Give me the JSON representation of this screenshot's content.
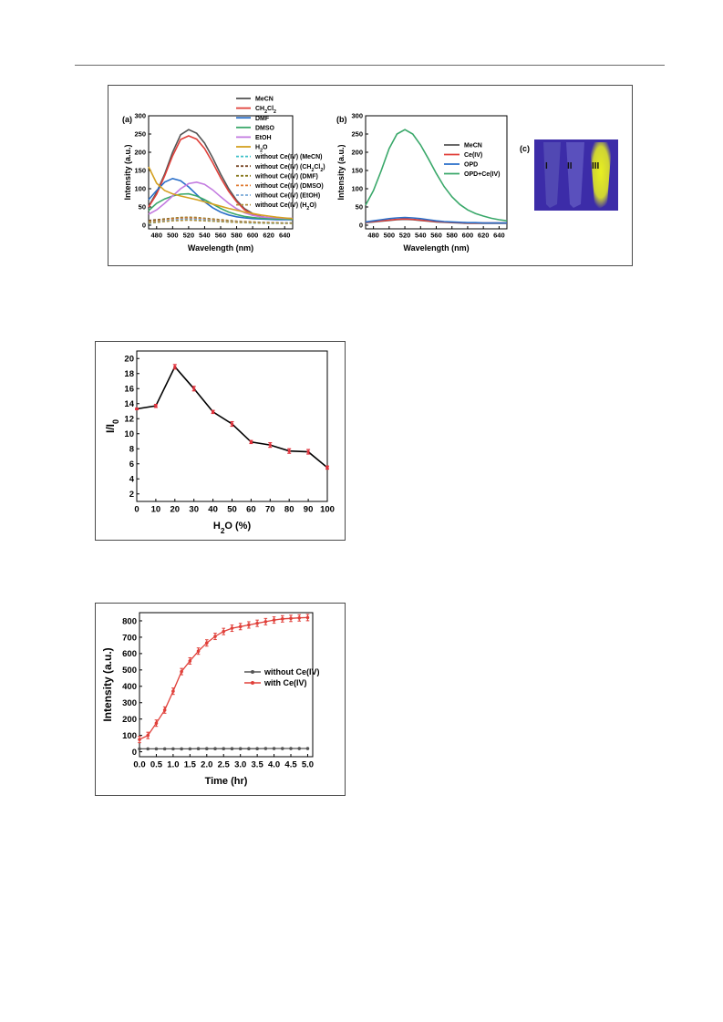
{
  "chart_data": [
    {
      "type": "line",
      "panel_label": "(a)",
      "xlabel": "Wavelength (nm)",
      "ylabel": "Intensity (a.u.)",
      "xlim": [
        470,
        650
      ],
      "ylim": [
        -10,
        300
      ],
      "xticks": [
        480,
        500,
        520,
        540,
        560,
        580,
        600,
        620,
        640
      ],
      "yticks": [
        0,
        50,
        100,
        150,
        200,
        250,
        300
      ],
      "legend_position": "top-center",
      "x": [
        470,
        480,
        490,
        500,
        510,
        520,
        530,
        540,
        550,
        560,
        570,
        580,
        590,
        600,
        610,
        620,
        630,
        640,
        650
      ],
      "series": [
        {
          "name": "MeCN",
          "color": "#555555",
          "style": "solid",
          "values": [
            52,
            90,
            140,
            200,
            248,
            262,
            252,
            225,
            185,
            140,
            100,
            68,
            45,
            32,
            24,
            20,
            18,
            17,
            16
          ]
        },
        {
          "name": "CH2Cl2",
          "name_main": "CH",
          "name_sub1": "2",
          "name_mid": "Cl",
          "name_sub2": "2",
          "color": "#e0403a",
          "style": "solid",
          "values": [
            50,
            85,
            135,
            190,
            235,
            245,
            236,
            210,
            172,
            130,
            93,
            64,
            42,
            30,
            23,
            19,
            17,
            16,
            15
          ]
        },
        {
          "name": "DMF",
          "color": "#2a6fc9",
          "style": "solid",
          "values": [
            70,
            95,
            118,
            128,
            122,
            105,
            84,
            64,
            48,
            36,
            28,
            23,
            20,
            18,
            17,
            16,
            15,
            15,
            15
          ]
        },
        {
          "name": "DMSO",
          "color": "#3aa86a",
          "style": "solid",
          "values": [
            40,
            60,
            72,
            80,
            85,
            86,
            80,
            70,
            58,
            46,
            36,
            29,
            24,
            21,
            19,
            18,
            17,
            17,
            16
          ]
        },
        {
          "name": "EtOH",
          "color": "#c37be0",
          "style": "solid",
          "values": [
            30,
            42,
            60,
            80,
            100,
            114,
            118,
            112,
            97,
            78,
            60,
            45,
            34,
            27,
            23,
            21,
            20,
            19,
            19
          ]
        },
        {
          "name": "H2O",
          "name_main": "H",
          "name_sub1": "2",
          "name_mid": "O",
          "name_sub2": "",
          "color": "#d4a020",
          "style": "solid",
          "values": [
            160,
            115,
            95,
            86,
            80,
            75,
            70,
            64,
            58,
            52,
            46,
            41,
            36,
            32,
            28,
            25,
            22,
            20,
            18
          ]
        },
        {
          "name": "without Ce(IV) (MeCN)",
          "color": "#3cc0c8",
          "style": "dashed",
          "values": [
            5,
            8,
            11,
            14,
            15,
            15,
            14,
            13,
            11,
            10,
            9,
            8,
            7,
            6,
            6,
            5,
            5,
            5,
            5
          ]
        },
        {
          "name": "without Ce(IV) (CH2Cl2)",
          "name_main": "without Ce(IV) (CH",
          "name_sub1": "2",
          "name_mid": "Cl",
          "name_sub2": "2",
          "name_tail": ")",
          "color": "#7a4a2a",
          "style": "dashed",
          "values": [
            13,
            15,
            17,
            19,
            20,
            20,
            19,
            17,
            15,
            13,
            11,
            10,
            9,
            8,
            7,
            7,
            6,
            6,
            6
          ]
        },
        {
          "name": "without Ce(IV) (DMF)",
          "color": "#8a7a20",
          "style": "dashed",
          "values": [
            10,
            13,
            16,
            19,
            21,
            22,
            21,
            19,
            17,
            15,
            13,
            11,
            10,
            9,
            8,
            7,
            7,
            6,
            6
          ]
        },
        {
          "name": "without Ce(IV) (DMSO)",
          "color": "#e07a30",
          "style": "dashed",
          "values": [
            8,
            11,
            14,
            17,
            19,
            20,
            19,
            17,
            15,
            13,
            11,
            10,
            9,
            8,
            7,
            7,
            6,
            6,
            6
          ]
        },
        {
          "name": "without Ce(IV) (EtOH)",
          "color": "#7aaad8",
          "style": "dashed",
          "values": [
            7,
            9,
            12,
            14,
            16,
            17,
            16,
            15,
            13,
            11,
            10,
            9,
            8,
            7,
            7,
            6,
            6,
            6,
            6
          ]
        },
        {
          "name": "without Ce(IV) (H2O)",
          "name_main": "without Ce(IV) (H",
          "name_sub1": "2",
          "name_mid": "O)",
          "name_sub2": "",
          "color": "#b09040",
          "style": "dashed",
          "values": [
            6,
            8,
            10,
            12,
            13,
            14,
            13,
            12,
            11,
            10,
            9,
            8,
            7,
            7,
            6,
            6,
            6,
            5,
            5
          ]
        }
      ]
    },
    {
      "type": "line",
      "panel_label": "(b)",
      "xlabel": "Wavelength (nm)",
      "ylabel": "Intensity (a.u.)",
      "xlim": [
        470,
        650
      ],
      "ylim": [
        -10,
        300
      ],
      "xticks": [
        480,
        500,
        520,
        540,
        560,
        580,
        600,
        620,
        640
      ],
      "yticks": [
        0,
        50,
        100,
        150,
        200,
        250,
        300
      ],
      "legend_position": "right",
      "x": [
        470,
        480,
        490,
        500,
        510,
        520,
        530,
        540,
        550,
        560,
        570,
        580,
        590,
        600,
        610,
        620,
        630,
        640,
        650
      ],
      "series": [
        {
          "name": "MeCN",
          "color": "#555555",
          "values": [
            7,
            9,
            11,
            13,
            15,
            16,
            15,
            13,
            11,
            9,
            8,
            7,
            6,
            5,
            5,
            5,
            5,
            5,
            5
          ]
        },
        {
          "name": "Ce(IV)",
          "color": "#e0403a",
          "values": [
            8,
            10,
            12,
            14,
            16,
            17,
            16,
            14,
            12,
            10,
            9,
            8,
            7,
            6,
            6,
            6,
            6,
            6,
            6
          ]
        },
        {
          "name": "OPD",
          "color": "#2a6fc9",
          "values": [
            9,
            12,
            15,
            18,
            20,
            21,
            20,
            18,
            15,
            12,
            10,
            9,
            8,
            7,
            7,
            6,
            6,
            6,
            6
          ]
        },
        {
          "name": "OPD+Ce(IV)",
          "color": "#3aa86a",
          "values": [
            55,
            95,
            150,
            210,
            250,
            262,
            250,
            220,
            182,
            142,
            106,
            78,
            57,
            42,
            32,
            25,
            19,
            15,
            12
          ]
        }
      ]
    },
    {
      "type": "line",
      "xlabel_main": "H",
      "xlabel_sub": "2",
      "xlabel_tail": "O (%)",
      "xlabel": "H2O (%)",
      "ylabel_main": "I/I",
      "ylabel_sub": "0",
      "ylabel": "I/I0",
      "xlim": [
        0,
        100
      ],
      "ylim": [
        1,
        21
      ],
      "xticks": [
        0,
        10,
        20,
        30,
        40,
        50,
        60,
        70,
        80,
        90,
        100
      ],
      "yticks": [
        2,
        4,
        6,
        8,
        10,
        12,
        14,
        16,
        18,
        20
      ],
      "x": [
        0,
        10,
        20,
        30,
        40,
        50,
        60,
        70,
        80,
        90,
        100
      ],
      "series": [
        {
          "name": "",
          "color": "#000000",
          "marker_color": "#e0303a",
          "values": [
            13.3,
            13.7,
            18.9,
            16.0,
            12.9,
            11.3,
            8.9,
            8.5,
            7.7,
            7.6,
            5.5
          ],
          "errors": [
            0.1,
            0.2,
            0.3,
            0.3,
            0.2,
            0.3,
            0.2,
            0.3,
            0.3,
            0.3,
            0.2
          ]
        }
      ]
    },
    {
      "type": "line",
      "xlabel": "Time (hr)",
      "ylabel": "Intensity (a.u.)",
      "xlim": [
        0,
        5.15
      ],
      "ylim": [
        -30,
        850
      ],
      "xticks": [
        0.0,
        0.5,
        1.0,
        1.5,
        2.0,
        2.5,
        3.0,
        3.5,
        4.0,
        4.5,
        5.0
      ],
      "xtick_labels": [
        "0.0",
        "0.5",
        "1.0",
        "1.5",
        "2.0",
        "2.5",
        "3.0",
        "3.5",
        "4.0",
        "4.5",
        "5.0"
      ],
      "yticks": [
        0,
        100,
        200,
        300,
        400,
        500,
        600,
        700,
        800
      ],
      "legend_position": "right",
      "x": [
        0,
        0.25,
        0.5,
        0.75,
        1.0,
        1.25,
        1.5,
        1.75,
        2.0,
        2.25,
        2.5,
        2.75,
        3.0,
        3.25,
        3.5,
        3.75,
        4.0,
        4.25,
        4.5,
        4.75,
        5.0
      ],
      "series": [
        {
          "name": "without Ce(IV)",
          "color": "#555555",
          "marker_color": "#555555",
          "values": [
            18,
            18,
            18,
            18,
            18,
            18,
            18,
            19,
            19,
            19,
            19,
            19,
            19,
            19,
            19,
            20,
            20,
            20,
            20,
            20,
            20
          ]
        },
        {
          "name": "with Ce(IV)",
          "color": "#e0403a",
          "marker_color": "#e0403a",
          "values": [
            75,
            100,
            175,
            255,
            370,
            490,
            555,
            615,
            665,
            705,
            735,
            755,
            765,
            775,
            785,
            795,
            805,
            812,
            815,
            818,
            820
          ]
        }
      ]
    }
  ],
  "photo": {
    "panel_label": "(c)",
    "labels": [
      "I",
      "II",
      "III"
    ],
    "background_color": "#3c2ca8",
    "glow_color": "#e8f020"
  }
}
